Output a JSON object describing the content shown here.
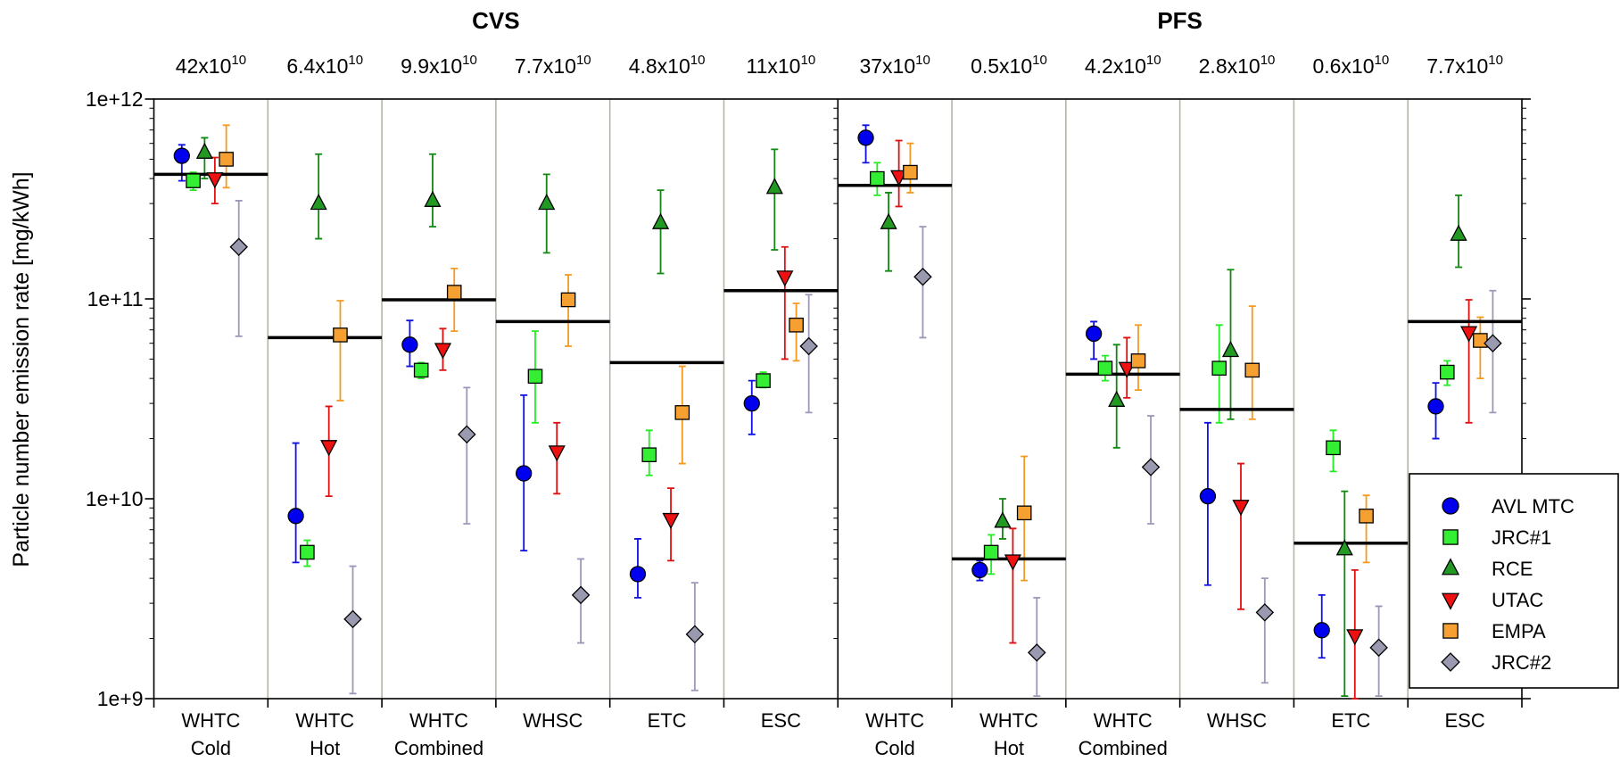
{
  "chart_data": {
    "type": "errorbar",
    "ylabel": "Particle number emission rate [mg/kWh]",
    "log_scale": true,
    "ylim": [
      1000000000.0,
      1000000000000.0
    ],
    "yticks": [
      {
        "value": 1000000000.0,
        "label": "1e+9"
      },
      {
        "value": 10000000000.0,
        "label": "1e+10"
      },
      {
        "value": 100000000000.0,
        "label": "1e+11"
      },
      {
        "value": 1000000000000.0,
        "label": "1e+12"
      }
    ],
    "groups": [
      {
        "label": "CVS"
      },
      {
        "label": "PFS"
      }
    ],
    "categories": [
      [
        "WHTC",
        "Cold"
      ],
      [
        "WHTC",
        "Hot"
      ],
      [
        "WHTC",
        "Combined"
      ],
      [
        "WHSC"
      ],
      [
        "ETC"
      ],
      [
        "ESC"
      ],
      [
        "WHTC",
        "Cold"
      ],
      [
        "WHTC",
        "Hot"
      ],
      [
        "WHTC",
        "Combined"
      ],
      [
        "WHSC"
      ],
      [
        "ETC"
      ],
      [
        "ESC"
      ]
    ],
    "means": [
      {
        "value": 420000000000.0,
        "label": "42x10",
        "exponent": "10"
      },
      {
        "value": 64000000000.0,
        "label": "6.4x10",
        "exponent": "10"
      },
      {
        "value": 99000000000.0,
        "label": "9.9x10",
        "exponent": "10"
      },
      {
        "value": 77000000000.0,
        "label": "7.7x10",
        "exponent": "10"
      },
      {
        "value": 48000000000.0,
        "label": "4.8x10",
        "exponent": "10"
      },
      {
        "value": 110000000000.0,
        "label": "11x10",
        "exponent": "10"
      },
      {
        "value": 370000000000.0,
        "label": "37x10",
        "exponent": "10"
      },
      {
        "value": 5000000000.0,
        "label": "0.5x10",
        "exponent": "10"
      },
      {
        "value": 42000000000.0,
        "label": "4.2x10",
        "exponent": "10"
      },
      {
        "value": 28000000000.0,
        "label": "2.8x10",
        "exponent": "10"
      },
      {
        "value": 6000000000.0,
        "label": "0.6x10",
        "exponent": "10"
      },
      {
        "value": 77000000000.0,
        "label": "7.7x10",
        "exponent": "10"
      }
    ],
    "legend": "lower right",
    "series": [
      {
        "name": "AVL MTC",
        "marker": "circle",
        "color": "#0000ee",
        "error_color": "#1010e0",
        "values": [
          520000000000.0,
          8200000000.0,
          59000000000.0,
          13400000000.0,
          4200000000.0,
          30000000000.0,
          640000000000.0,
          4400000000.0,
          67000000000.0,
          10300000000.0,
          2200000000.0,
          29000000000.0
        ],
        "error_low": [
          390000000000.0,
          4800000000.0,
          46000000000.0,
          5500000000.0,
          3200000000.0,
          21000000000.0,
          480000000000.0,
          3900000000.0,
          50000000000.0,
          3700000000.0,
          1600000000.0,
          20000000000.0
        ],
        "error_high": [
          590000000000.0,
          19000000000.0,
          78000000000.0,
          33000000000.0,
          6300000000.0,
          39000000000.0,
          740000000000.0,
          4900000000.0,
          77000000000.0,
          24000000000.0,
          3300000000.0,
          38000000000.0
        ]
      },
      {
        "name": "JRC#1",
        "marker": "square",
        "color": "#33ee33",
        "error_color": "#22ee22",
        "values": [
          390000000000.0,
          5400000000.0,
          44000000000.0,
          41000000000.0,
          16600000000.0,
          39000000000.0,
          400000000000.0,
          5400000000.0,
          45000000000.0,
          45000000000.0,
          18000000000.0,
          43000000000.0
        ],
        "error_low": [
          350000000000.0,
          4600000000.0,
          40000000000.0,
          24000000000.0,
          13100000000.0,
          36000000000.0,
          330000000000.0,
          4200000000.0,
          39000000000.0,
          24000000000.0,
          13700000000.0,
          37000000000.0
        ],
        "error_high": [
          430000000000.0,
          6200000000.0,
          48000000000.0,
          69000000000.0,
          22000000000.0,
          43000000000.0,
          480000000000.0,
          6600000000.0,
          52000000000.0,
          74000000000.0,
          22000000000.0,
          49000000000.0
        ]
      },
      {
        "name": "RCE",
        "marker": "triangle-up",
        "color": "#229922",
        "error_color": "#118811",
        "values": [
          540000000000.0,
          300000000000.0,
          310000000000.0,
          300000000000.0,
          240000000000.0,
          360000000000.0,
          240000000000.0,
          7700000000.0,
          31000000000.0,
          55000000000.0,
          5600000000.0,
          210000000000.0
        ],
        "error_low": [
          400000000000.0,
          200000000000.0,
          230000000000.0,
          170000000000.0,
          134000000000.0,
          176000000000.0,
          138000000000.0,
          6300000000.0,
          18000000000.0,
          25000000000.0,
          1030000000.0,
          144000000000.0
        ],
        "error_high": [
          640000000000.0,
          530000000000.0,
          530000000000.0,
          420000000000.0,
          350000000000.0,
          560000000000.0,
          340000000000.0,
          10000000000.0,
          59000000000.0,
          140000000000.0,
          10900000000.0,
          330000000000.0
        ]
      },
      {
        "name": "UTAC",
        "marker": "triangle-down",
        "color": "#ee1111",
        "error_color": "#e01010",
        "values": [
          400000000000.0,
          18300000000.0,
          56000000000.0,
          17200000000.0,
          7900000000.0,
          129000000000.0,
          410000000000.0,
          4900000000.0,
          45000000000.0,
          9200000000.0,
          2070000000.0,
          68000000000.0
        ],
        "error_low": [
          300000000000.0,
          10300000000.0,
          44000000000.0,
          10600000000.0,
          4900000000.0,
          50000000000.0,
          290000000000.0,
          1900000000.0,
          32000000000.0,
          2800000000.0,
          1000000000.0,
          24000000000.0
        ],
        "error_high": [
          510000000000.0,
          29000000000.0,
          71000000000.0,
          24000000000.0,
          11300000000.0,
          182000000000.0,
          620000000000.0,
          7100000000.0,
          64000000000.0,
          15000000000.0,
          4400000000.0,
          99000000000.0
        ]
      },
      {
        "name": "EMPA",
        "marker": "square",
        "color": "#f5a030",
        "error_color": "#f59a20",
        "values": [
          500000000000.0,
          66000000000.0,
          108000000000.0,
          99000000000.0,
          27000000000.0,
          74000000000.0,
          430000000000.0,
          8500000000.0,
          49000000000.0,
          44000000000.0,
          8200000000.0,
          62000000000.0
        ],
        "error_low": [
          360000000000.0,
          31000000000.0,
          69000000000.0,
          58000000000.0,
          15000000000.0,
          49000000000.0,
          340000000000.0,
          3900000000.0,
          35000000000.0,
          25000000000.0,
          4800000000.0,
          40000000000.0
        ],
        "error_high": [
          740000000000.0,
          98000000000.0,
          142000000000.0,
          132000000000.0,
          46000000000.0,
          95000000000.0,
          600000000000.0,
          16300000000.0,
          74000000000.0,
          92000000000.0,
          10400000000.0,
          81000000000.0
        ]
      },
      {
        "name": "JRC#2",
        "marker": "diamond",
        "color": "#9999b0",
        "error_color": "#9a9ab8",
        "values": [
          182000000000.0,
          2500000000.0,
          21000000000.0,
          3300000000.0,
          2100000000.0,
          58000000000.0,
          129000000000.0,
          1700000000.0,
          14400000000.0,
          2700000000.0,
          1800000000.0,
          60000000000.0
        ],
        "error_low": [
          65000000000.0,
          1060000000.0,
          7500000000.0,
          1900000000.0,
          1100000000.0,
          27000000000.0,
          64000000000.0,
          1030000000.0,
          7500000000.0,
          1200000000.0,
          1030000000.0,
          27000000000.0
        ],
        "error_high": [
          310000000000.0,
          4600000000.0,
          36000000000.0,
          5000000000.0,
          3800000000.0,
          105000000000.0,
          230000000000.0,
          3200000000.0,
          26000000000.0,
          4000000000.0,
          2900000000.0,
          110000000000.0
        ]
      }
    ]
  }
}
